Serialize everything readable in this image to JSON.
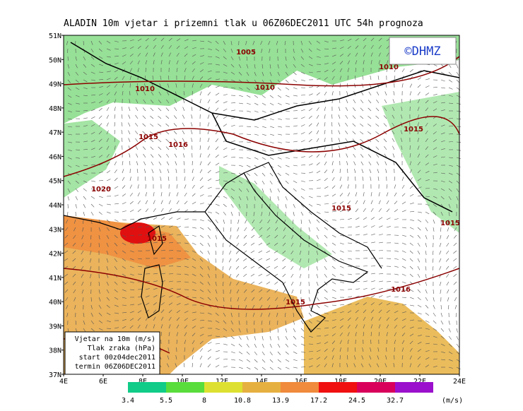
{
  "header": {
    "title": "ALADIN 10m vjetar i prizemni tlak u 06Z06DEC2011 UTC 54h prognoza",
    "logo": "©DHMZ"
  },
  "map": {
    "lat_labels": [
      "51N",
      "50N",
      "49N",
      "48N",
      "47N",
      "46N",
      "45N",
      "44N",
      "43N",
      "42N",
      "41N",
      "40N",
      "39N",
      "38N",
      "37N"
    ],
    "lon_labels": [
      "4E",
      "6E",
      "8E",
      "10E",
      "12E",
      "14E",
      "16E",
      "18E",
      "20E",
      "22E",
      "24E"
    ],
    "isobar_labels": [
      "1005",
      "1010",
      "1010",
      "1010",
      "1015",
      "1016",
      "1015",
      "1020",
      "1015",
      "1015",
      "1015",
      "1015",
      "1016"
    ]
  },
  "info_box": [
    "Vjetar na 10m (m/s)",
    "Tlak zraka (hPa)",
    "start 00z04dec2011",
    "termin 06Z06DEC2011"
  ],
  "colorbar": {
    "labels": [
      "3.4",
      "5.5",
      "8",
      "10.8",
      "13.9",
      "17.2",
      "24.5",
      "32.7"
    ],
    "unit": "(m/s)"
  }
}
